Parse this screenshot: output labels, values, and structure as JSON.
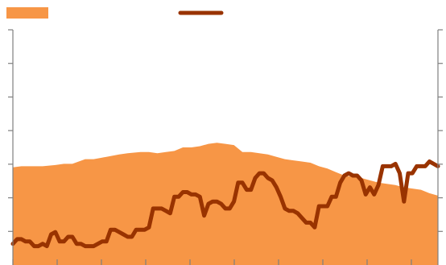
{
  "chart_data": {
    "type": "area+line",
    "title": "",
    "xlabel": "",
    "ylabel": "",
    "x_range": [
      0,
      100
    ],
    "y_range": [
      0,
      100
    ],
    "grid": false,
    "legend_placement": "top-left",
    "x_tick_count": 9,
    "y_tick_count": 7,
    "series": [
      {
        "kind": "area",
        "color": "#f79646",
        "x": [
          0,
          2,
          4,
          7,
          10,
          12,
          14,
          17,
          19,
          22,
          25,
          27,
          30,
          32,
          34,
          36,
          38,
          40,
          42,
          44,
          46,
          48,
          50,
          52,
          54,
          56,
          58,
          60,
          62,
          64,
          66,
          68,
          70,
          72,
          74,
          76,
          78,
          80,
          82,
          84,
          86,
          88,
          90,
          92,
          94,
          96,
          98,
          100
        ],
        "values": [
          41.5,
          42,
          42,
          42,
          42.5,
          43,
          43,
          45,
          45,
          46,
          47,
          47.5,
          48,
          48,
          47.5,
          48,
          48.5,
          50,
          50,
          50.5,
          51.5,
          52,
          51.5,
          51,
          48,
          48,
          47.5,
          47,
          46,
          45,
          44.5,
          44,
          43.5,
          42,
          41,
          39.5,
          38,
          37.5,
          37,
          36,
          35,
          34.5,
          34,
          33,
          32.5,
          32,
          30.5,
          29.5
        ]
      },
      {
        "kind": "line",
        "color": "#993300",
        "x": [
          0,
          1,
          2,
          3,
          4,
          5,
          6,
          7,
          8,
          9,
          10,
          11,
          12,
          13,
          14,
          15,
          16,
          17,
          18,
          19,
          20,
          21,
          22,
          23,
          24,
          25,
          26,
          27,
          28,
          29,
          30,
          31,
          32,
          33,
          34,
          35,
          36,
          37,
          38,
          39,
          40,
          41,
          42,
          43,
          44,
          45,
          46,
          47,
          48,
          49,
          50,
          51,
          52,
          53,
          54,
          55,
          56,
          57,
          58,
          59,
          60,
          61,
          62,
          63,
          64,
          65,
          66,
          67,
          68,
          69,
          70,
          71,
          72,
          73,
          74,
          75,
          76,
          77,
          78,
          79,
          80,
          81,
          82,
          83,
          84,
          85,
          86,
          87,
          88,
          89,
          90,
          91,
          92,
          93,
          94,
          95,
          96,
          97,
          98,
          99,
          100
        ],
        "values": [
          9,
          11,
          11,
          10,
          10,
          8,
          8,
          9,
          8,
          13,
          14,
          10,
          10,
          12,
          12,
          9,
          9,
          8,
          8,
          8,
          9,
          10,
          10,
          15,
          15,
          14,
          13,
          12,
          12,
          15,
          15,
          15,
          16,
          24,
          24,
          24,
          23,
          22,
          29,
          29,
          31,
          31,
          30,
          30,
          29,
          21,
          26,
          27,
          27,
          26,
          24,
          24,
          27,
          35,
          35,
          32,
          32,
          37,
          39,
          39,
          37,
          36,
          33,
          29,
          24,
          23,
          23,
          22,
          20,
          18,
          18,
          16,
          25,
          25,
          25,
          29,
          29,
          35,
          38,
          39,
          38,
          38,
          36,
          30,
          33,
          30,
          34,
          42,
          42,
          42,
          43,
          39,
          27,
          39,
          39,
          42,
          42,
          42,
          44,
          43,
          42
        ]
      }
    ]
  }
}
